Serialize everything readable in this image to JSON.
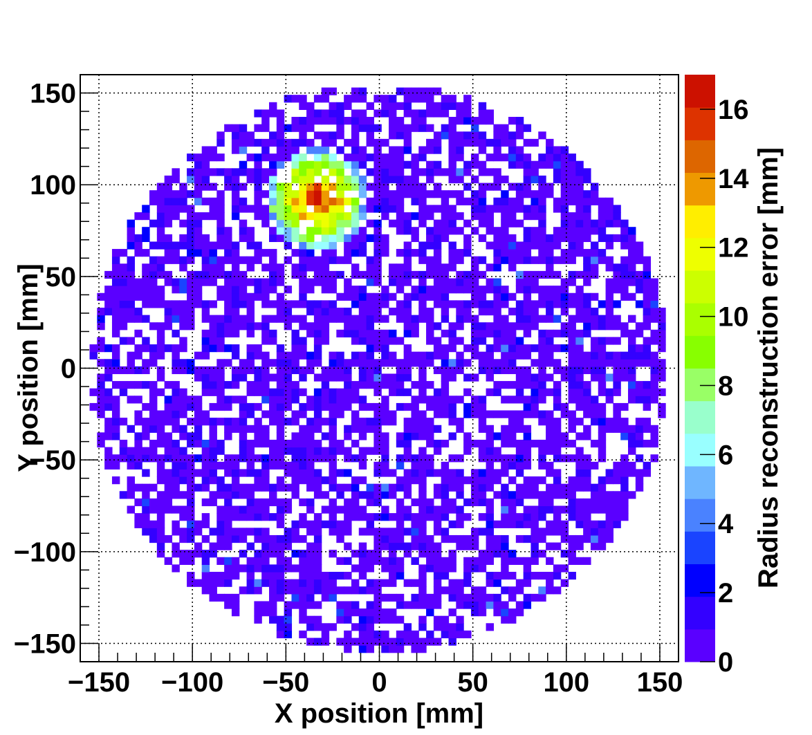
{
  "chart_data": {
    "type": "heatmap",
    "title": "",
    "xlabel": "X position [mm]",
    "ylabel": "Y position [mm]",
    "zlabel": "Radius reconstruction error [mm]",
    "xlim": [
      -160,
      160
    ],
    "ylim": [
      -160,
      160
    ],
    "zlim": [
      0,
      17
    ],
    "x_ticks": [
      -150,
      -100,
      -50,
      0,
      50,
      100,
      150
    ],
    "y_ticks": [
      -150,
      -100,
      -50,
      0,
      50,
      100,
      150
    ],
    "z_ticks": [
      0,
      2,
      4,
      6,
      8,
      10,
      12,
      14,
      16
    ],
    "x_tick_labels": [
      "−150",
      "−100",
      "−50",
      "0",
      "50",
      "100",
      "150"
    ],
    "y_tick_labels": [
      "−150",
      "−100",
      "−50",
      "0",
      "50",
      "100",
      "150"
    ],
    "z_tick_labels": [
      "0",
      "2",
      "4",
      "6",
      "8",
      "10",
      "12",
      "14",
      "16"
    ],
    "grid": true,
    "bin_width_mm": 4,
    "detector_radius_mm": 155,
    "fill_fraction": 0.68,
    "background_error_range": [
      0,
      2
    ],
    "hotspot": {
      "center": [
        -33,
        92
      ],
      "peak_error": 16.5,
      "radius_mm": 28
    },
    "colorbar_colors": [
      "#5a00ff",
      "#3300ff",
      "#0000ff",
      "#1a44ff",
      "#4a82ff",
      "#6fb6ff",
      "#99ffff",
      "#99ffcc",
      "#99ff66",
      "#88ff00",
      "#aaff00",
      "#ccff00",
      "#eeff00",
      "#ffee00",
      "#ee9900",
      "#dd6600",
      "#dd3300",
      "#cc1100"
    ]
  }
}
